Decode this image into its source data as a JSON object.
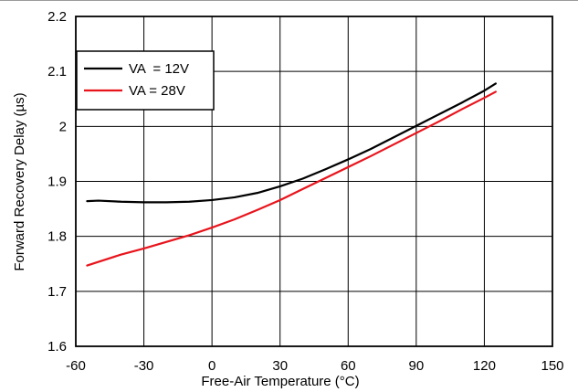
{
  "chart_data": {
    "type": "line",
    "xlabel": "Free-Air Temperature (°C)",
    "ylabel": "Forward Recovery Delay (µs)",
    "xlim": [
      -60,
      150
    ],
    "ylim": [
      1.6,
      2.2
    ],
    "x_ticks": [
      -60,
      -30,
      0,
      30,
      60,
      90,
      120,
      150
    ],
    "x_tick_labels": [
      "-60",
      "-30",
      "0",
      "30",
      "60",
      "90",
      "120",
      "150"
    ],
    "y_ticks": [
      1.6,
      1.7,
      1.8,
      1.9,
      2.0,
      2.1,
      2.2
    ],
    "y_tick_labels": [
      "1.6",
      "1.7",
      "1.8",
      "1.9",
      "2",
      "2.1",
      "2.2"
    ],
    "grid": true,
    "legend_position": "top-left",
    "series": [
      {
        "name": "VA  = 12V",
        "color": "#000000",
        "x": [
          -55,
          -50,
          -40,
          -30,
          -20,
          -10,
          0,
          10,
          20,
          30,
          40,
          50,
          60,
          70,
          80,
          90,
          100,
          110,
          120,
          125
        ],
        "y": [
          1.864,
          1.865,
          1.863,
          1.862,
          1.862,
          1.863,
          1.866,
          1.871,
          1.879,
          1.891,
          1.905,
          1.922,
          1.94,
          1.959,
          1.98,
          2.001,
          2.022,
          2.043,
          2.065,
          2.078
        ]
      },
      {
        "name": "VA = 28V",
        "color": "#e8141c",
        "x": [
          -55,
          -40,
          -30,
          -20,
          -10,
          0,
          10,
          20,
          30,
          40,
          50,
          60,
          70,
          80,
          90,
          100,
          110,
          120,
          125
        ],
        "y": [
          1.747,
          1.767,
          1.778,
          1.79,
          1.802,
          1.816,
          1.831,
          1.848,
          1.866,
          1.886,
          1.906,
          1.926,
          1.946,
          1.967,
          1.988,
          2.009,
          2.031,
          2.052,
          2.063
        ]
      }
    ]
  }
}
